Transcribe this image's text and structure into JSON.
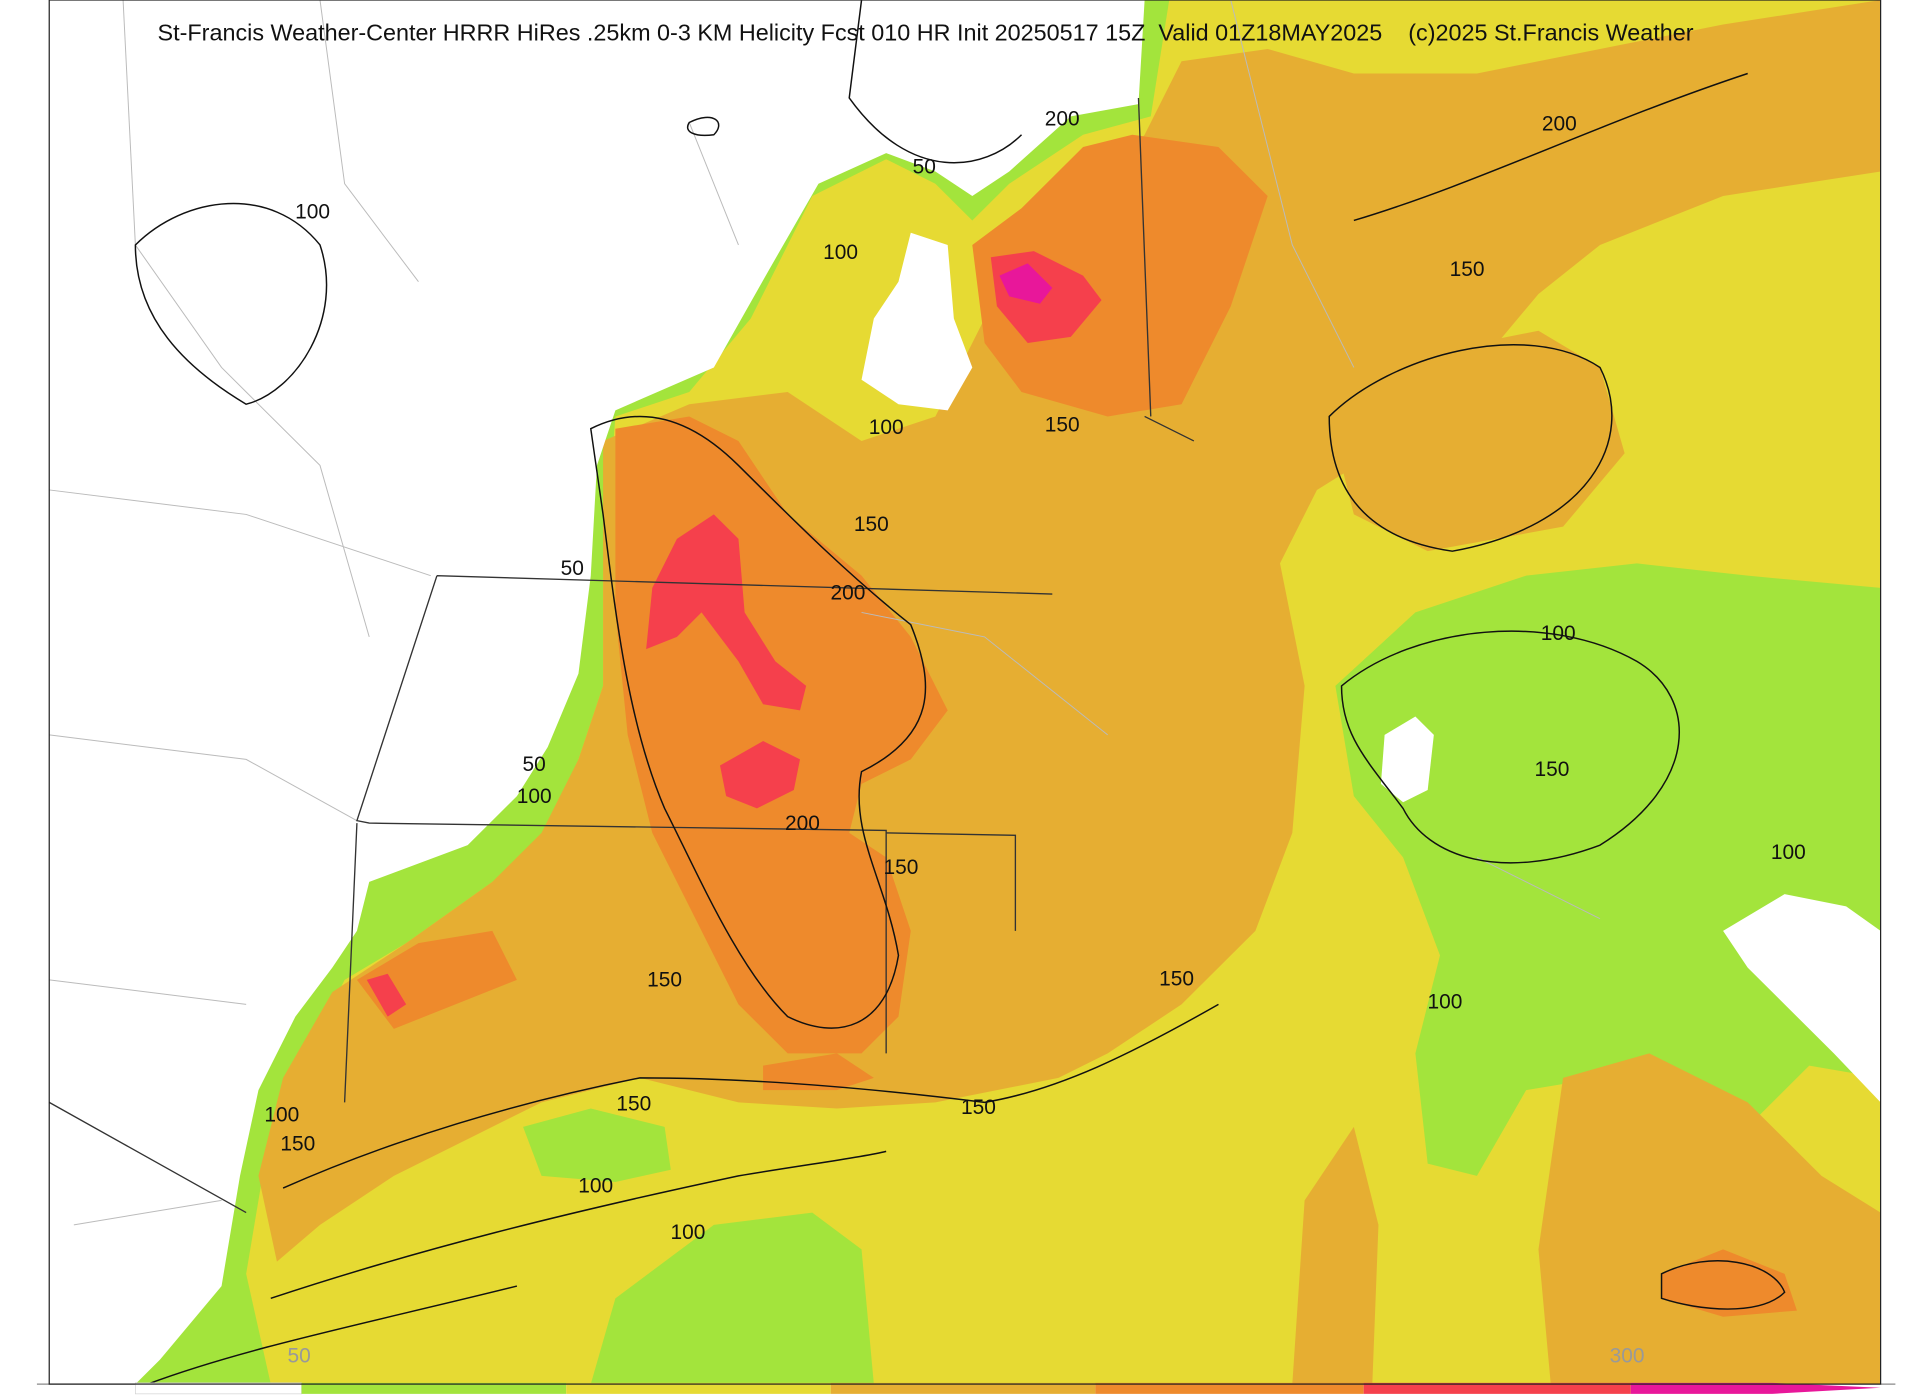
{
  "header": {
    "title": "St-Francis Weather-Center HRRR HiRes .25km 0-3 KM Helicity Fcst 010 HR Init 20250517 15Z  Valid 01Z18MAY2025    (c)2025 St.Francis Weather"
  },
  "contour_labels": [
    "200",
    "50",
    "100",
    "100",
    "200",
    "150",
    "100",
    "150",
    "150",
    "50",
    "200",
    "100",
    "50",
    "150",
    "100",
    "200",
    "100",
    "150",
    "150",
    "150",
    "100",
    "100",
    "150",
    "150",
    "150",
    "100",
    "100"
  ],
  "colorbar": {
    "labels": [
      "50",
      "300"
    ]
  }
}
